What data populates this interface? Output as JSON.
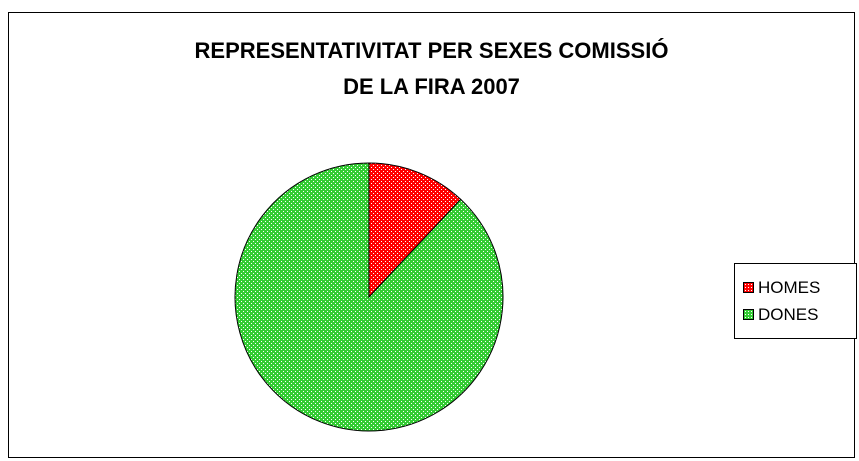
{
  "chart_data": {
    "type": "pie",
    "title_lines": [
      "REPRESENTATIVITAT PER SEXES COMISSIÓ",
      "DE LA FIRA 2007"
    ],
    "series": [
      {
        "name": "HOMES",
        "value": 12,
        "color": "#ff0000",
        "pattern_color": "#ffffff"
      },
      {
        "name": "DONES",
        "value": 88,
        "color": "#33cc33",
        "pattern_color": "#ffffff"
      }
    ],
    "legend_position": "right"
  }
}
